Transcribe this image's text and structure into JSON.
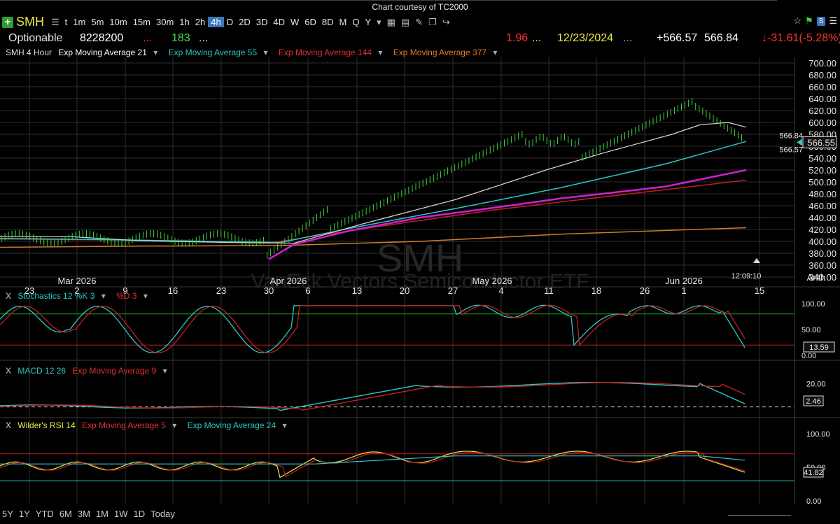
{
  "credit": "Chart courtesy of TC2000",
  "toolbar": {
    "symbol": "SMH",
    "timeframes": [
      "t",
      "1m",
      "5m",
      "10m",
      "15m",
      "30m",
      "1h",
      "2h",
      "4h",
      "D",
      "2D",
      "3D",
      "4D",
      "W",
      "6D",
      "8D",
      "M",
      "Q",
      "Y"
    ],
    "active_timeframe": "4h",
    "rt_label": "RT",
    "sp_label": "S"
  },
  "quote": {
    "name": "Optionable",
    "volume": "8228200",
    "dots1": "...",
    "count": "183",
    "dots2": "...",
    "value": "1.96",
    "dots3": "...",
    "date": "12/23/2024",
    "dots4": "...",
    "change_pts": "+566.57",
    "last": "566.84",
    "change": "-31.61",
    "change_pct": "(-5.28%)"
  },
  "main_legend": {
    "title": "SMH 4 Hour",
    "ema21": "Exp Moving Average 21",
    "ema55": "Exp Moving Average 55",
    "ema144": "Exp Moving Average 144",
    "ema377": "Exp Moving Average 377"
  },
  "watermark": {
    "ticker": "SMH",
    "name": "VanEck Vectors Semiconductor ETF"
  },
  "price_axis": {
    "ticks": [
      "700.00",
      "680.00",
      "660.00",
      "640.00",
      "620.00",
      "600.00",
      "580.00",
      "560.00",
      "540.00",
      "520.00",
      "500.00",
      "480.00",
      "460.00",
      "440.00",
      "420.00",
      "400.00",
      "380.00",
      "360.00",
      "340.00"
    ],
    "last_label": "566.55",
    "high_tag": "566.84",
    "low_tag": "566.57",
    "scale": "Arith"
  },
  "date_axis": {
    "days": [
      "23",
      "2",
      "9",
      "16",
      "23",
      "30",
      "6",
      "13",
      "20",
      "27",
      "4",
      "11",
      "18",
      "26",
      "1",
      "15"
    ],
    "months": [
      "Mar 2026",
      "Apr 2026",
      "May 2026",
      "Jun 2026"
    ],
    "clock": "12:09:10"
  },
  "stoch": {
    "close": "X",
    "title": "Stochastics 12 %K 3",
    "d": "%D 3",
    "ticks": [
      "100.00",
      "50.00",
      "0.00"
    ],
    "last": "13.59"
  },
  "macd": {
    "close": "X",
    "title": "MACD 12 26",
    "ema": "Exp Moving Average 9",
    "ticks": [
      "20.00"
    ],
    "last": "2.46"
  },
  "rsi": {
    "close": "X",
    "title": "Wilder's RSI 14",
    "ema5": "Exp Moving Average 5",
    "ema24": "Exp Moving Average 24",
    "ticks": [
      "100.00",
      "50.00",
      "0.00"
    ],
    "last": "41.82"
  },
  "ranges": [
    "5Y",
    "1Y",
    "YTD",
    "6M",
    "3M",
    "1M",
    "1W",
    "1D",
    "Today"
  ],
  "colors": {
    "bg": "#000000",
    "grid": "#2e2e2e",
    "bars": "#3fd43f",
    "ema21": "#d8d8d8",
    "ema55": "#2ec6c6",
    "ema144": "#d020d0",
    "ema377_red": "#c02020",
    "ema_orange": "#d07a2a",
    "up": "#40e040",
    "down": "#ff3030",
    "yellow": "#e8e848"
  }
}
